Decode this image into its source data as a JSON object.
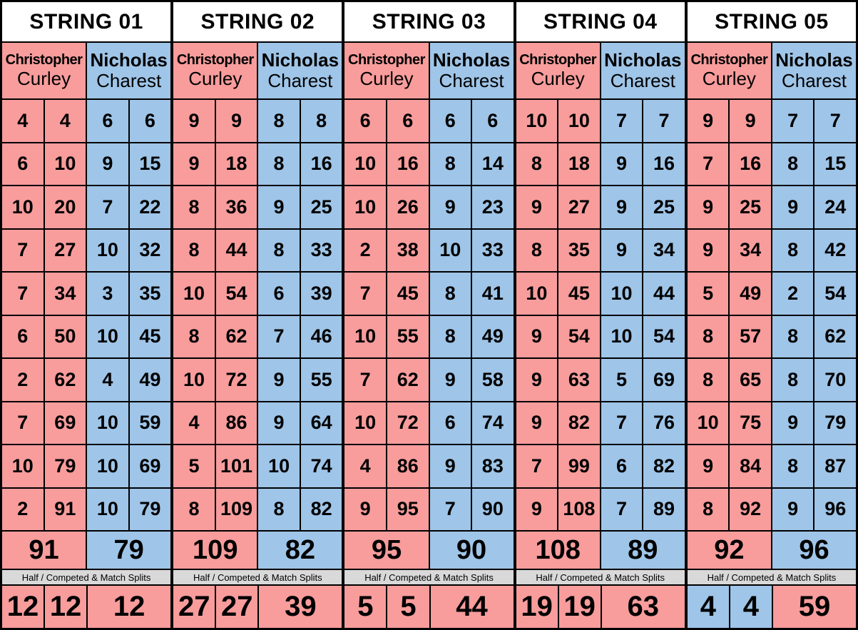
{
  "colors": {
    "player_a_bg": "#F89C9C",
    "player_b_bg": "#9FC5E8",
    "band_bg": "#D9D9D9",
    "title_bg": "#FFFFFF",
    "border": "#000000"
  },
  "players": {
    "a": {
      "first": "Christopher",
      "last": "Curley"
    },
    "b": {
      "first": "Nicholas",
      "last": "Charest"
    }
  },
  "band_label": "Half / Competed & Match Splits",
  "strings": [
    {
      "title": "STRING 01",
      "a": {
        "rows": [
          [
            "4",
            "4"
          ],
          [
            "6",
            "10"
          ],
          [
            "10",
            "20"
          ],
          [
            "7",
            "27"
          ],
          [
            "7",
            "34"
          ],
          [
            "6",
            "50"
          ],
          [
            "2",
            "62"
          ],
          [
            "7",
            "69"
          ],
          [
            "10",
            "79"
          ],
          [
            "2",
            "91"
          ]
        ],
        "flags": {
          "5": [
            "tl"
          ],
          "6": [
            "tl"
          ],
          "9": [
            "tl"
          ]
        },
        "final": "91"
      },
      "b": {
        "rows": [
          [
            "6",
            "6"
          ],
          [
            "9",
            "15"
          ],
          [
            "7",
            "22"
          ],
          [
            "10",
            "32"
          ],
          [
            "3",
            "35"
          ],
          [
            "10",
            "45"
          ],
          [
            "4",
            "49"
          ],
          [
            "10",
            "59"
          ],
          [
            "10",
            "69"
          ],
          [
            "10",
            "79"
          ]
        ],
        "flags": {},
        "final": "79"
      },
      "splits": [
        {
          "value": "12",
          "color": "a"
        },
        {
          "value": "12",
          "color": "a"
        },
        {
          "value": "12",
          "color": "a"
        }
      ]
    },
    {
      "title": "STRING 02",
      "a": {
        "rows": [
          [
            "9",
            "9"
          ],
          [
            "9",
            "18"
          ],
          [
            "8",
            "36"
          ],
          [
            "8",
            "44"
          ],
          [
            "10",
            "54"
          ],
          [
            "8",
            "62"
          ],
          [
            "10",
            "72"
          ],
          [
            "4",
            "86"
          ],
          [
            "5",
            "101"
          ],
          [
            "8",
            "109"
          ]
        ],
        "flags": {
          "2": [
            "tl",
            "br"
          ],
          "7": [
            "tl"
          ],
          "8": [
            "tl"
          ]
        },
        "final": "109"
      },
      "b": {
        "rows": [
          [
            "8",
            "8"
          ],
          [
            "8",
            "16"
          ],
          [
            "9",
            "25"
          ],
          [
            "8",
            "33"
          ],
          [
            "6",
            "39"
          ],
          [
            "7",
            "46"
          ],
          [
            "9",
            "55"
          ],
          [
            "9",
            "64"
          ],
          [
            "10",
            "74"
          ],
          [
            "8",
            "82"
          ]
        ],
        "flags": {},
        "final": "82"
      },
      "splits": [
        {
          "value": "27",
          "color": "a"
        },
        {
          "value": "27",
          "color": "a"
        },
        {
          "value": "39",
          "color": "a"
        }
      ]
    },
    {
      "title": "STRING 03",
      "a": {
        "rows": [
          [
            "6",
            "6"
          ],
          [
            "10",
            "16"
          ],
          [
            "10",
            "26"
          ],
          [
            "2",
            "38"
          ],
          [
            "7",
            "45"
          ],
          [
            "10",
            "55"
          ],
          [
            "7",
            "62"
          ],
          [
            "10",
            "72"
          ],
          [
            "4",
            "86"
          ],
          [
            "9",
            "95"
          ]
        ],
        "flags": {
          "3": [
            "tl"
          ],
          "8": [
            "tl"
          ]
        },
        "final": "95"
      },
      "b": {
        "rows": [
          [
            "6",
            "6"
          ],
          [
            "8",
            "14"
          ],
          [
            "9",
            "23"
          ],
          [
            "10",
            "33"
          ],
          [
            "8",
            "41"
          ],
          [
            "8",
            "49"
          ],
          [
            "9",
            "58"
          ],
          [
            "6",
            "74"
          ],
          [
            "9",
            "83"
          ],
          [
            "7",
            "90"
          ]
        ],
        "flags": {
          "7": [
            "tl"
          ]
        },
        "final": "90"
      },
      "splits": [
        {
          "value": "5",
          "color": "a"
        },
        {
          "value": "5",
          "color": "a"
        },
        {
          "value": "44",
          "color": "a"
        }
      ]
    },
    {
      "title": "STRING 04",
      "a": {
        "rows": [
          [
            "10",
            "10"
          ],
          [
            "8",
            "18"
          ],
          [
            "9",
            "27"
          ],
          [
            "8",
            "35"
          ],
          [
            "10",
            "45"
          ],
          [
            "9",
            "54"
          ],
          [
            "9",
            "63"
          ],
          [
            "9",
            "82"
          ],
          [
            "7",
            "99"
          ],
          [
            "9",
            "108"
          ]
        ],
        "flags": {
          "7": [
            "tl"
          ],
          "8": [
            "tl"
          ]
        },
        "final": "108"
      },
      "b": {
        "rows": [
          [
            "7",
            "7"
          ],
          [
            "9",
            "16"
          ],
          [
            "9",
            "25"
          ],
          [
            "9",
            "34"
          ],
          [
            "10",
            "44"
          ],
          [
            "10",
            "54"
          ],
          [
            "5",
            "69"
          ],
          [
            "7",
            "76"
          ],
          [
            "6",
            "82"
          ],
          [
            "7",
            "89"
          ]
        ],
        "flags": {
          "6": [
            "tl",
            "br"
          ]
        },
        "final": "89"
      },
      "splits": [
        {
          "value": "19",
          "color": "a"
        },
        {
          "value": "19",
          "color": "a"
        },
        {
          "value": "63",
          "color": "a"
        }
      ]
    },
    {
      "title": "STRING 05",
      "a": {
        "rows": [
          [
            "9",
            "9"
          ],
          [
            "7",
            "16"
          ],
          [
            "9",
            "25"
          ],
          [
            "9",
            "34"
          ],
          [
            "5",
            "49"
          ],
          [
            "8",
            "57"
          ],
          [
            "8",
            "65"
          ],
          [
            "10",
            "75"
          ],
          [
            "9",
            "84"
          ],
          [
            "8",
            "92"
          ]
        ],
        "flags": {
          "4": [
            "tl"
          ]
        },
        "final": "92"
      },
      "b": {
        "rows": [
          [
            "7",
            "7"
          ],
          [
            "8",
            "15"
          ],
          [
            "9",
            "24"
          ],
          [
            "8",
            "42"
          ],
          [
            "2",
            "54"
          ],
          [
            "8",
            "62"
          ],
          [
            "8",
            "70"
          ],
          [
            "9",
            "79"
          ],
          [
            "8",
            "87"
          ],
          [
            "9",
            "96"
          ]
        ],
        "flags": {
          "3": [
            "tl"
          ],
          "4": [
            "tl"
          ]
        },
        "final": "96"
      },
      "splits": [
        {
          "value": "4",
          "color": "b"
        },
        {
          "value": "4",
          "color": "b"
        },
        {
          "value": "59",
          "color": "a"
        }
      ]
    }
  ]
}
